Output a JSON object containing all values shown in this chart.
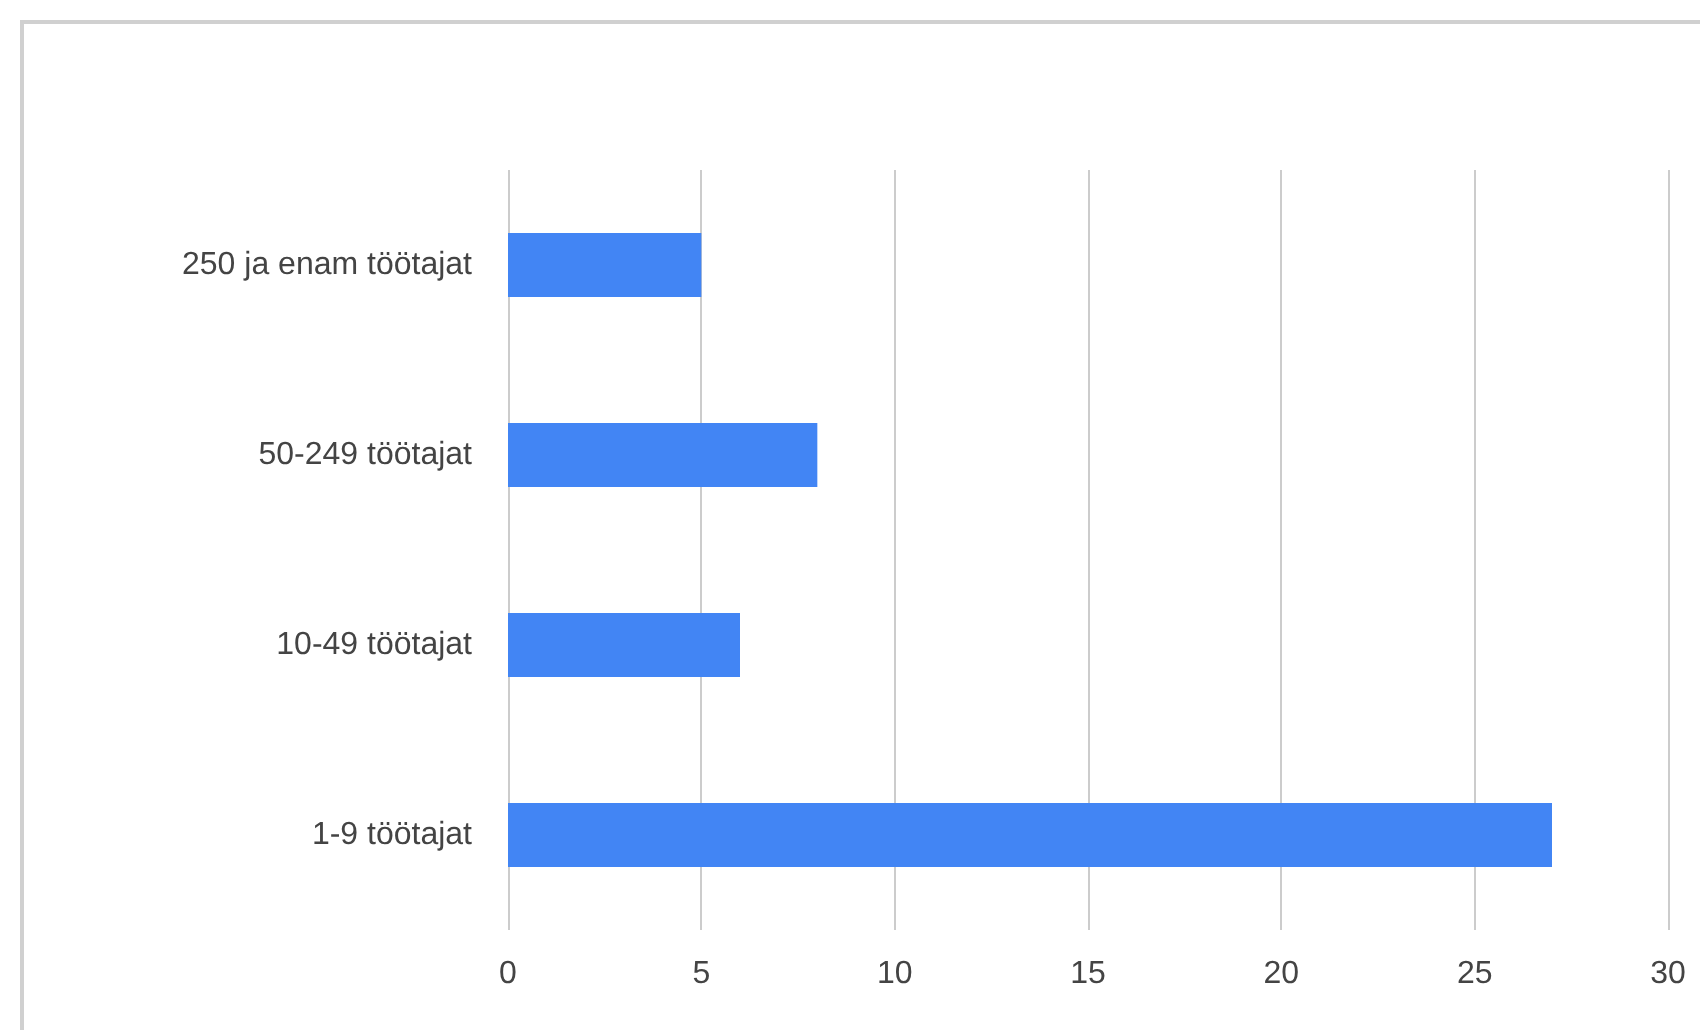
{
  "chart_data": {
    "type": "bar",
    "orientation": "horizontal",
    "categories": [
      "250 ja enam töötajat",
      "50-249 töötajat",
      "10-49 töötajat",
      "1-9 töötajat"
    ],
    "values": [
      5,
      8,
      6,
      27
    ],
    "color": "#4285f4",
    "xlim": [
      0,
      30
    ],
    "xticks": [
      0,
      5,
      10,
      15,
      20,
      25,
      30
    ],
    "grid": "x"
  }
}
